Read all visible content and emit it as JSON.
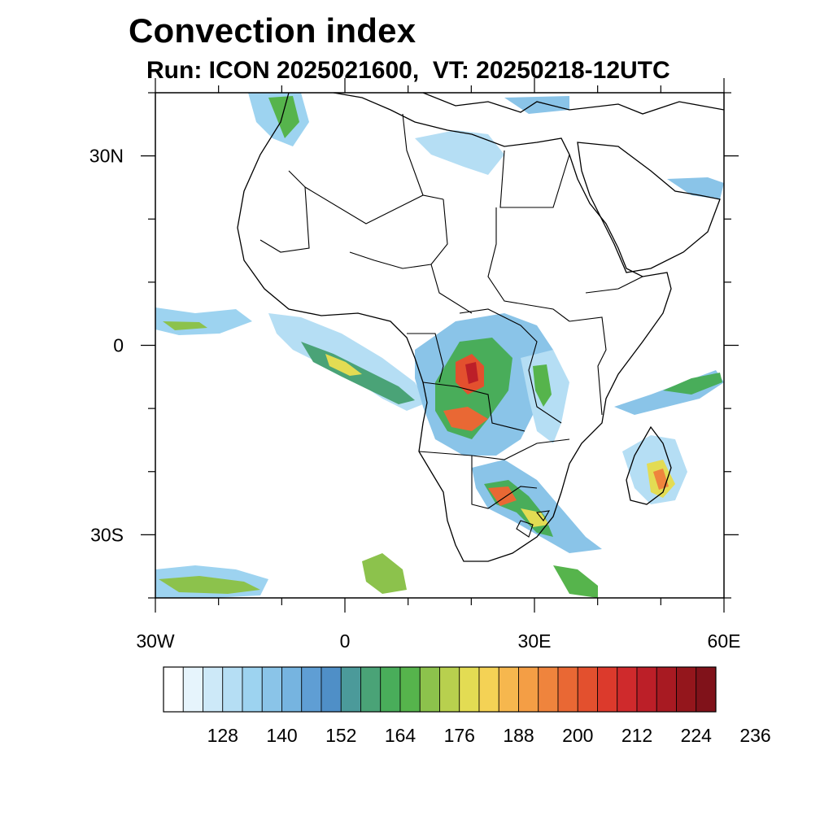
{
  "title": "Convection index",
  "subtitle": "Run: ICON 2025021600,  VT: 20250218-12UTC",
  "map": {
    "lon_range": [
      -30,
      60
    ],
    "lat_range": [
      -40,
      40
    ],
    "lat_ticks": [
      {
        "value": 30,
        "label": "30N"
      },
      {
        "value": 0,
        "label": "0"
      },
      {
        "value": -30,
        "label": "30S"
      }
    ],
    "lon_ticks": [
      {
        "value": -30,
        "label": "30W"
      },
      {
        "value": 0,
        "label": "0"
      },
      {
        "value": 30,
        "label": "30E"
      },
      {
        "value": 60,
        "label": "60E"
      }
    ]
  },
  "colorbar": {
    "colors": [
      "#ffffff",
      "#e6f4fc",
      "#cde9f8",
      "#b5def4",
      "#9dd3f0",
      "#8ac4e8",
      "#76b4e0",
      "#5f9ed4",
      "#4f8fc7",
      "#4b9a9a",
      "#4aa377",
      "#49ad5a",
      "#56b44c",
      "#8cc24c",
      "#b8d04e",
      "#e3dc53",
      "#f4d255",
      "#f6b74e",
      "#f49e45",
      "#ef843d",
      "#e96834",
      "#e3502e",
      "#dc3a2c",
      "#cf2a2c",
      "#bc1f28",
      "#a81a22",
      "#94161c",
      "#80121a"
    ],
    "labels": [
      "128",
      "140",
      "152",
      "164",
      "176",
      "188",
      "200",
      "212",
      "224",
      "236"
    ]
  }
}
